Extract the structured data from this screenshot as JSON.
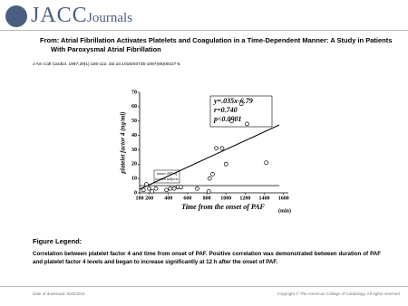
{
  "header": {
    "logo": "JACC",
    "journals": "Journals"
  },
  "title": "From: Atrial Fibrillation Activates Platelets and Coagulation in a Time-Dependent Manner: A Study in Patients With Paroxysmal Atrial Fibrillation",
  "citation": "J Am Coll Cardiol. 1997;29(1):106-112. doi:10.1016/S0735-1097(96)00427-5",
  "chart_data": {
    "type": "scatter",
    "x_label": "Time from the onset of PAF",
    "x_unit": "(min)",
    "y_label": "platelet factor 4 (ng/ml)",
    "annotations": [
      "y=.035x-6.79",
      "r=0.740",
      "p<0.0001"
    ],
    "reference_note": [
      "mean+2SD of",
      "normal subjects"
    ],
    "x": [
      140,
      170,
      200,
      230,
      270,
      380,
      420,
      460,
      500,
      530,
      700,
      820,
      830,
      860,
      900,
      960,
      1000,
      1060,
      1160,
      1220,
      1420
    ],
    "values": [
      2,
      6,
      3,
      1,
      3,
      2,
      3,
      3,
      4,
      4,
      3,
      1,
      10,
      13,
      31,
      31,
      20,
      50,
      62,
      48,
      21
    ],
    "color": "#000000",
    "xlim": [
      100,
      1650
    ],
    "xticks": [
      100,
      200,
      400,
      600,
      800,
      1000,
      1200,
      1400,
      1600
    ],
    "ylim": [
      0,
      70
    ],
    "yticks": [
      0,
      10,
      20,
      30,
      40,
      50,
      60,
      70
    ]
  },
  "legend": {
    "heading": "Figure Legend:",
    "text": "Correlation between platelet factor 4 and time from onset of PAF. Positive correlation was demonstrated between duration of PAF and platelet factor 4 levels and began to increase significantly at 12 h after the onset of PAF."
  },
  "footer": {
    "date": "Date of download: 6/25/2016",
    "copyright": "Copyright © The American College of Cardiology. All rights reserved."
  }
}
